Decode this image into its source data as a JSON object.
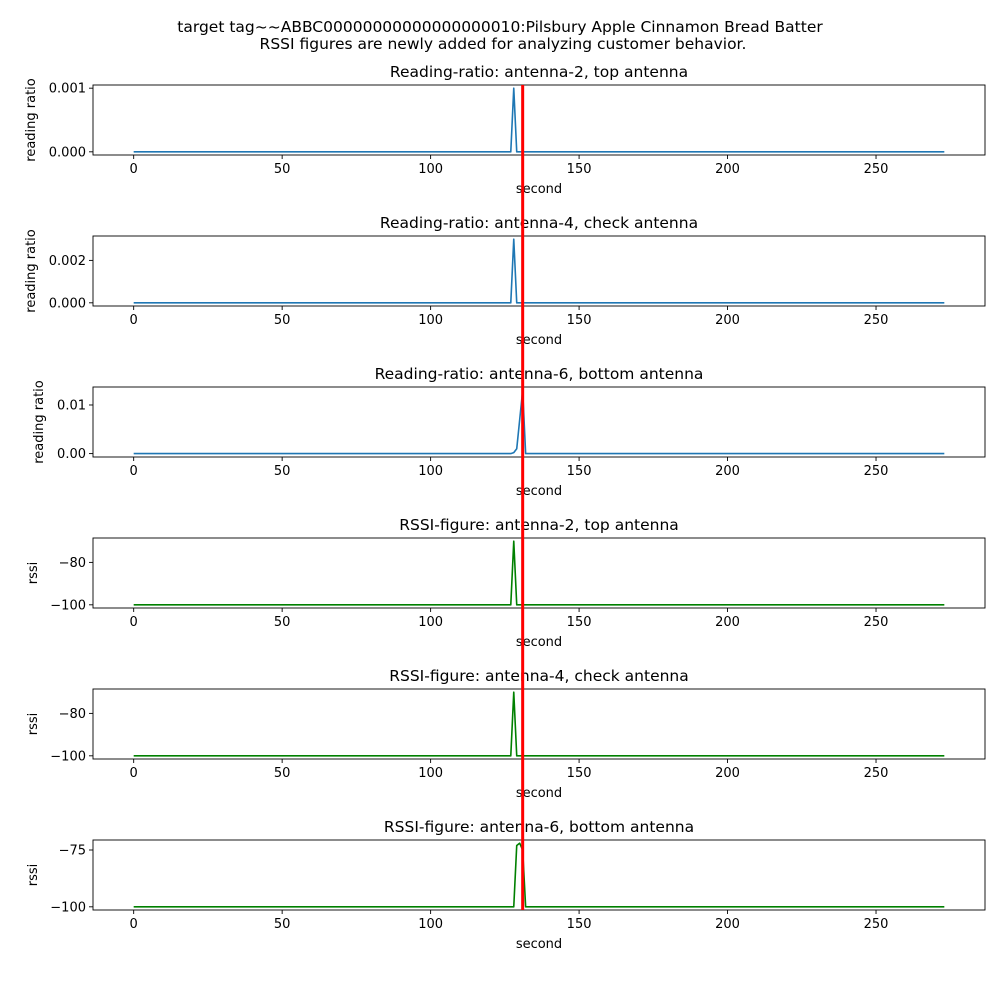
{
  "figure": {
    "suptitle_line1": "target tag~~ABBC00000000000000000010:Pilsbury Apple Cinnamon Bread Batter",
    "suptitle_line2": "RSSI figures are newly added for analyzing customer behavior."
  },
  "colors": {
    "ratio_line": "#1f77b4",
    "rssi_line": "#008000",
    "marker_line": "#ff0000"
  },
  "chart_data": [
    {
      "type": "line",
      "title": "Reading-ratio: antenna-2, top antenna",
      "xlabel": "second",
      "ylabel": "reading ratio",
      "xlim": [
        -13.7,
        286.7
      ],
      "ylim": [
        -5e-05,
        0.00105
      ],
      "xticks": [
        0,
        50,
        100,
        150,
        200,
        250
      ],
      "xtick_labels": [
        "0",
        "50",
        "100",
        "150",
        "200",
        "250"
      ],
      "yticks": [
        0.0,
        0.001
      ],
      "ytick_labels": [
        "0.000",
        "0.001"
      ],
      "vline_x": 131,
      "series": [
        {
          "color": "ratio_line",
          "x": [
            0,
            127,
            128,
            129,
            273
          ],
          "y": [
            0,
            0,
            0.001,
            0,
            0
          ]
        }
      ]
    },
    {
      "type": "line",
      "title": "Reading-ratio: antenna-4, check antenna",
      "xlabel": "second",
      "ylabel": "reading ratio",
      "xlim": [
        -13.7,
        286.7
      ],
      "ylim": [
        -0.00015,
        0.00315
      ],
      "xticks": [
        0,
        50,
        100,
        150,
        200,
        250
      ],
      "xtick_labels": [
        "0",
        "50",
        "100",
        "150",
        "200",
        "250"
      ],
      "yticks": [
        0.0,
        0.002
      ],
      "ytick_labels": [
        "0.000",
        "0.002"
      ],
      "vline_x": 131,
      "series": [
        {
          "color": "ratio_line",
          "x": [
            0,
            127,
            128,
            129,
            273
          ],
          "y": [
            0,
            0,
            0.003,
            0,
            0
          ]
        }
      ]
    },
    {
      "type": "line",
      "title": "Reading-ratio: antenna-6, bottom antenna",
      "xlabel": "second",
      "ylabel": "reading ratio",
      "xlim": [
        -13.7,
        286.7
      ],
      "ylim": [
        -0.0007,
        0.0137
      ],
      "xticks": [
        0,
        50,
        100,
        150,
        200,
        250
      ],
      "xtick_labels": [
        "0",
        "50",
        "100",
        "150",
        "200",
        "250"
      ],
      "yticks": [
        0.0,
        0.01
      ],
      "ytick_labels": [
        "0.00",
        "0.01"
      ],
      "vline_x": 131,
      "series": [
        {
          "color": "ratio_line",
          "x": [
            0,
            127,
            128,
            129,
            130,
            131,
            132,
            273
          ],
          "y": [
            0,
            0,
            0.0002,
            0.001,
            0.007,
            0.013,
            0,
            0
          ]
        }
      ]
    },
    {
      "type": "line",
      "title": "RSSI-figure: antenna-2, top antenna",
      "xlabel": "second",
      "ylabel": "rssi",
      "xlim": [
        -13.7,
        286.7
      ],
      "ylim": [
        -101.5,
        -68.5
      ],
      "xticks": [
        0,
        50,
        100,
        150,
        200,
        250
      ],
      "xtick_labels": [
        "0",
        "50",
        "100",
        "150",
        "200",
        "250"
      ],
      "yticks": [
        -100,
        -80
      ],
      "ytick_labels": [
        "−100",
        "−80"
      ],
      "vline_x": 131,
      "series": [
        {
          "color": "rssi_line",
          "x": [
            0,
            127,
            128,
            129,
            273
          ],
          "y": [
            -100,
            -100,
            -70,
            -100,
            -100
          ]
        }
      ]
    },
    {
      "type": "line",
      "title": "RSSI-figure: antenna-4, check antenna",
      "xlabel": "second",
      "ylabel": "rssi",
      "xlim": [
        -13.7,
        286.7
      ],
      "ylim": [
        -101.5,
        -68.5
      ],
      "xticks": [
        0,
        50,
        100,
        150,
        200,
        250
      ],
      "xtick_labels": [
        "0",
        "50",
        "100",
        "150",
        "200",
        "250"
      ],
      "yticks": [
        -100,
        -80
      ],
      "ytick_labels": [
        "−100",
        "−80"
      ],
      "vline_x": 131,
      "series": [
        {
          "color": "rssi_line",
          "x": [
            0,
            127,
            128,
            129,
            273
          ],
          "y": [
            -100,
            -100,
            -70,
            -100,
            -100
          ]
        }
      ]
    },
    {
      "type": "line",
      "title": "RSSI-figure: antenna-6, bottom antenna",
      "xlabel": "second",
      "ylabel": "rssi",
      "xlim": [
        -13.7,
        286.7
      ],
      "ylim": [
        -101.4,
        -70.6
      ],
      "xticks": [
        0,
        50,
        100,
        150,
        200,
        250
      ],
      "xtick_labels": [
        "0",
        "50",
        "100",
        "150",
        "200",
        "250"
      ],
      "yticks": [
        -100,
        -75
      ],
      "ytick_labels": [
        "−100",
        "−75"
      ],
      "vline_x": 131,
      "series": [
        {
          "color": "rssi_line",
          "x": [
            0,
            127,
            128,
            129,
            130,
            131,
            132,
            273
          ],
          "y": [
            -100,
            -100,
            -100,
            -73,
            -72,
            -75,
            -100,
            -100
          ]
        }
      ]
    }
  ]
}
